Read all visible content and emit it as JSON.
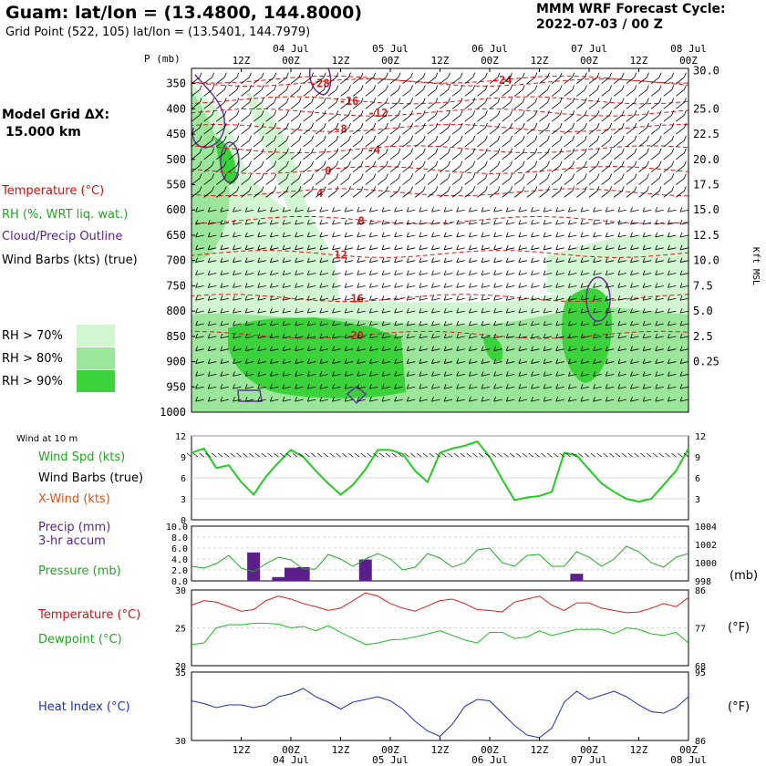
{
  "header": {
    "title": "Guam:  lat/lon = (13.4800, 144.8000)",
    "subtitle": "Grid Point (522, 105) lat/lon = (13.5401, 144.7979)",
    "cycle_line1": "MMM WRF Forecast Cycle:",
    "cycle_line2": "2022-07-03 / 00  Z"
  },
  "legend": {
    "model_grid_line1": "Model Grid ΔX:",
    "model_grid_line2": "15.000 km",
    "temperature": "Temperature (°C)",
    "rh": "RH (%, WRT liq. wat.)",
    "cloud": "Cloud/Precip Outline",
    "wind_barbs": "Wind Barbs (kts) (true)",
    "rh70": "RH > 70%",
    "rh80": "RH > 80%",
    "rh90": "RH > 90%",
    "colors": {
      "rh70": "#d2f5d2",
      "rh80": "#9be69b",
      "rh90": "#3cd23c",
      "temp": "#e01818",
      "cloud": "#6a2fa0"
    }
  },
  "time_axis": {
    "hour_labels": [
      "12Z",
      "00Z",
      "12Z",
      "00Z",
      "12Z",
      "00Z",
      "12Z",
      "00Z",
      "12Z",
      "00Z"
    ],
    "day_labels": [
      "04 Jul",
      "05 Jul",
      "06 Jul",
      "07 Jul",
      "08 Jul"
    ]
  },
  "chart_data": [
    {
      "type": "heatmap",
      "title": "",
      "ylabel_left": "P (mb)",
      "ylabel_right": "Kft MSL",
      "pressure_ticks": [
        350,
        400,
        450,
        500,
        550,
        600,
        650,
        700,
        750,
        800,
        850,
        900,
        950,
        1000
      ],
      "kft_ticks": [
        "30.0",
        "25.0",
        "22.5",
        "20.0",
        "17.5",
        "15.0",
        "12.5",
        "10.0",
        "7.5",
        "5.0",
        "2.5",
        "0.25"
      ],
      "ylim": [
        1000,
        320
      ],
      "temperature_contour_labels": [
        {
          "value": "-28",
          "p": 348,
          "t": 31
        },
        {
          "value": "-24",
          "p": 342,
          "t": 75
        },
        {
          "value": "-16",
          "p": 383,
          "t": 38
        },
        {
          "value": "-12",
          "p": 407,
          "t": 45
        },
        {
          "value": "-8",
          "p": 438,
          "t": 36
        },
        {
          "value": "-4",
          "p": 480,
          "t": 44
        },
        {
          "value": "0",
          "p": 521,
          "t": 33
        },
        {
          "value": "4",
          "p": 565,
          "t": 31
        },
        {
          "value": "8",
          "p": 620,
          "t": 41
        },
        {
          "value": "12",
          "p": 687,
          "t": 36
        },
        {
          "value": "16",
          "p": 774,
          "t": 40
        },
        {
          "value": "20",
          "p": 847,
          "t": 40
        }
      ]
    },
    {
      "type": "line",
      "title": "Wind at 10 m",
      "ylim": [
        0,
        12
      ],
      "yticks": [
        3,
        6,
        9,
        12
      ],
      "series": [
        {
          "name": "Wind Spd (kts)",
          "color": "#22cc22",
          "x": [
            0,
            3,
            6,
            9,
            12,
            15,
            18,
            21,
            24,
            27,
            30,
            33,
            36,
            39,
            42,
            45,
            48,
            51,
            54,
            57,
            60,
            63,
            66,
            69,
            72,
            75,
            78,
            81,
            84,
            87,
            90,
            93,
            96,
            99,
            102,
            105,
            108,
            111,
            114,
            117,
            120
          ],
          "values": [
            9.6,
            10.2,
            7.4,
            7.8,
            5.4,
            3.6,
            6.2,
            8.2,
            10.0,
            9.0,
            7.0,
            5.2,
            3.6,
            5.0,
            7.2,
            10.0,
            10.0,
            9.4,
            7.0,
            5.4,
            9.6,
            10.2,
            10.6,
            11.2,
            9.0,
            5.8,
            2.8,
            3.2,
            3.4,
            4.0,
            9.6,
            9.2,
            7.2,
            5.2,
            4.0,
            3.0,
            2.6,
            3.0,
            5.0,
            7.0,
            10.2
          ]
        },
        {
          "name": "X-Wind (kts)",
          "color": "#e0501a",
          "values": []
        }
      ],
      "barbs_label": "Wind Barbs (true)"
    },
    {
      "type": "bar",
      "title": "Precip (mm) 3-hr accum",
      "yticks_left": [
        "0.0",
        "2.0",
        "4.0",
        "6.0",
        "8.0",
        "10.0"
      ],
      "yticks_right": [
        "998",
        "1000",
        "1002",
        "1004"
      ],
      "ylim": [
        0,
        10
      ],
      "right_ylabel": "(mb)",
      "series": [
        {
          "name": "Precip (mm)",
          "color": "#5a1f8a",
          "x": [
            15,
            21,
            24,
            27,
            42,
            93
          ],
          "values": [
            5.2,
            0.7,
            2.4,
            2.5,
            3.9,
            1.3
          ]
        },
        {
          "name": "Pressure (mb)",
          "color": "#22aa22",
          "x": [
            0,
            3,
            6,
            9,
            12,
            15,
            18,
            21,
            24,
            27,
            30,
            33,
            36,
            39,
            42,
            45,
            48,
            51,
            54,
            57,
            60,
            63,
            66,
            69,
            72,
            75,
            78,
            81,
            84,
            87,
            90,
            93,
            96,
            99,
            102,
            105,
            108,
            111,
            114,
            117,
            120
          ],
          "values": [
            999.6,
            999.4,
            999.9,
            1000.8,
            999.4,
            999.0,
            999.9,
            1000.6,
            1000.3,
            999.3,
            999.3,
            1000.9,
            1000.4,
            999.6,
            1000.4,
            1001.0,
            1000.4,
            999.2,
            999.5,
            1001.0,
            1000.5,
            999.5,
            1000.0,
            1001.4,
            1001.6,
            1000.0,
            999.6,
            1000.8,
            1000.9,
            999.6,
            999.6,
            1001.2,
            1000.6,
            999.6,
            1000.4,
            1001.8,
            1001.2,
            1000.0,
            999.5,
            1000.6,
            1001.0
          ]
        }
      ]
    },
    {
      "type": "line",
      "title": "",
      "ylim": [
        20,
        30
      ],
      "yticks_left": [
        "20",
        "25",
        "30"
      ],
      "yticks_right": [
        "68",
        "77",
        "86"
      ],
      "right_ylabel": "(°F)",
      "series": [
        {
          "name": "Temperature (°C)",
          "color": "#dd1a1a",
          "x": [
            0,
            3,
            6,
            9,
            12,
            15,
            18,
            21,
            24,
            27,
            30,
            33,
            36,
            39,
            42,
            45,
            48,
            51,
            54,
            57,
            60,
            63,
            66,
            69,
            72,
            75,
            78,
            81,
            84,
            87,
            90,
            93,
            96,
            99,
            102,
            105,
            108,
            111,
            114,
            117,
            120
          ],
          "values": [
            28.0,
            28.6,
            28.4,
            27.8,
            27.2,
            27.4,
            28.6,
            29.2,
            28.8,
            28.2,
            27.8,
            27.3,
            27.6,
            28.6,
            29.6,
            29.2,
            28.2,
            27.6,
            27.2,
            27.9,
            28.6,
            28.8,
            28.2,
            27.4,
            27.3,
            27.1,
            28.4,
            28.8,
            29.2,
            28.0,
            27.3,
            28.3,
            28.3,
            27.6,
            27.3,
            27.0,
            27.1,
            27.6,
            28.2,
            27.8,
            29.0
          ]
        },
        {
          "name": "Dewpoint (°C)",
          "color": "#22bb22",
          "x": [
            0,
            3,
            6,
            9,
            12,
            15,
            18,
            21,
            24,
            27,
            30,
            33,
            36,
            39,
            42,
            45,
            48,
            51,
            54,
            57,
            60,
            63,
            66,
            69,
            72,
            75,
            78,
            81,
            84,
            87,
            90,
            93,
            96,
            99,
            102,
            105,
            108,
            111,
            114,
            117,
            120
          ],
          "values": [
            22.8,
            23.0,
            25.0,
            25.4,
            25.4,
            25.6,
            25.6,
            25.5,
            25.0,
            25.2,
            24.6,
            25.3,
            24.4,
            23.6,
            22.8,
            23.0,
            23.4,
            23.5,
            23.8,
            24.2,
            24.6,
            24.0,
            23.4,
            23.0,
            24.4,
            24.4,
            23.6,
            23.8,
            24.6,
            24.0,
            24.4,
            24.8,
            24.8,
            24.8,
            24.2,
            25.0,
            24.8,
            24.2,
            24.0,
            24.4,
            23.0
          ]
        }
      ]
    },
    {
      "type": "line",
      "title": "",
      "ylim": [
        30,
        35
      ],
      "yticks_left": [
        "30",
        "35"
      ],
      "yticks_right": [
        "86",
        "95"
      ],
      "right_ylabel": "(°F)",
      "series": [
        {
          "name": "Heat Index (°C)",
          "color": "#1f2fbf",
          "x": [
            0,
            3,
            6,
            9,
            12,
            15,
            18,
            21,
            24,
            27,
            30,
            33,
            36,
            39,
            42,
            45,
            48,
            51,
            54,
            57,
            60,
            63,
            66,
            69,
            72,
            75,
            78,
            81,
            84,
            87,
            90,
            93,
            96,
            99,
            102,
            105,
            108,
            111,
            114,
            117,
            120
          ],
          "values": [
            32.9,
            32.7,
            32.4,
            32.6,
            32.6,
            32.4,
            32.6,
            33.2,
            33.4,
            33.8,
            33.2,
            32.8,
            32.3,
            32.8,
            33.0,
            33.2,
            32.9,
            32.3,
            31.4,
            30.7,
            30.3,
            31.2,
            32.5,
            33.0,
            32.9,
            32.0,
            31.1,
            30.4,
            30.2,
            30.9,
            32.8,
            33.6,
            33.0,
            33.3,
            33.6,
            33.2,
            32.6,
            32.1,
            32.0,
            32.4,
            33.2
          ]
        }
      ]
    }
  ],
  "panel_labels": {
    "wind_at_10m": "Wind at 10 m",
    "wind_spd": "Wind Spd (kts)",
    "wind_barbs_true": "Wind Barbs (true)",
    "xwind": "X-Wind (kts)",
    "precip": "Precip (mm)",
    "precip_accum": "3-hr accum",
    "pressure": "Pressure (mb)",
    "mb_unit": "(mb)",
    "temperature": "Temperature (°C)",
    "dewpoint": "Dewpoint (°C)",
    "heat_index": "Heat Index (°C)",
    "degf1": "(°F)",
    "degf2": "(°F)",
    "kft_msl": "Kft MSL",
    "p_mb": "P (mb)"
  }
}
